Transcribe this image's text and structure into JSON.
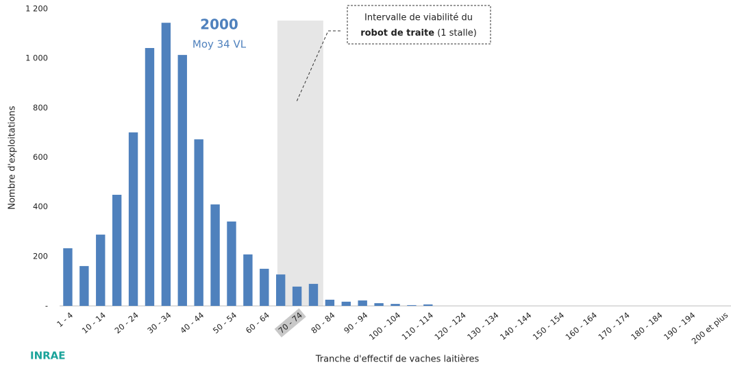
{
  "chart_data": {
    "type": "bar",
    "annotation_title": "2000",
    "annotation_subtitle": "Moy 34 VL",
    "note_line1": "Intervalle de viabilité du",
    "note_bold": "robot de traite",
    "note_rest": "(1 stalle)",
    "x_label": "Tranche d'effectif de vaches laitières",
    "y_label": "Nombre d'exploitations",
    "logo": "INRAE",
    "categories": [
      "1 - 4",
      null,
      "10 - 14",
      null,
      "20 - 24",
      null,
      "30 - 34",
      null,
      "40 - 44",
      null,
      "50 - 54",
      null,
      "60 - 64",
      null,
      "70 - 74",
      null,
      "80 - 84",
      null,
      "90 - 94",
      null,
      "100 - 104",
      null,
      "110 - 114",
      null,
      "120 - 124",
      null,
      "130 - 134",
      null,
      "140 - 144",
      null,
      "150 - 154",
      null,
      "160 - 164",
      null,
      "170 - 174",
      null,
      "180 - 184",
      null,
      "190 - 194",
      null,
      "200 et plus"
    ],
    "values": [
      233,
      161,
      288,
      449,
      701,
      1042,
      1144,
      1014,
      673,
      410,
      341,
      208,
      150,
      127,
      78,
      89,
      25,
      17,
      22,
      11,
      8,
      3,
      6,
      0,
      0,
      0,
      0,
      0,
      0,
      0,
      0,
      0,
      0,
      0,
      0,
      0,
      0,
      0,
      0,
      0,
      0
    ],
    "color": "#4f81bd",
    "ylim": [
      0,
      1200
    ],
    "yticks": [
      {
        "value": 0,
        "label": "-"
      },
      200,
      400,
      600,
      800,
      {
        "value": 1000,
        "label": "1 000"
      },
      {
        "value": 1200,
        "label": "1 200"
      }
    ],
    "grid": false
  }
}
